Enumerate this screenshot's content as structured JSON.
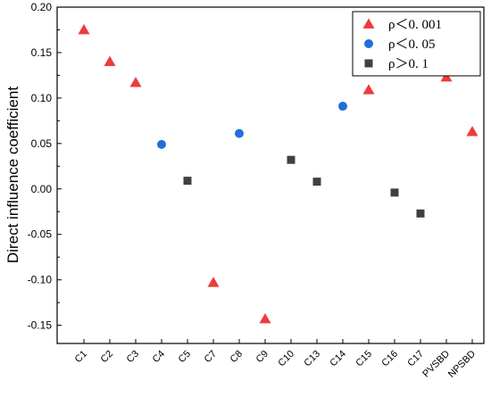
{
  "chart_data": {
    "type": "scatter",
    "title": "",
    "xlabel": "",
    "ylabel": "Direct influence coefficient",
    "ylim": [
      -0.17,
      0.2
    ],
    "yticks": [
      -0.15,
      -0.1,
      -0.05,
      0.0,
      0.05,
      0.1,
      0.15,
      0.2
    ],
    "ytick_labels": [
      "-0.15",
      "-0.10",
      "-0.05",
      "0.00",
      "0.05",
      "0.10",
      "0.15",
      "0.20"
    ],
    "categories": [
      "C1",
      "C2",
      "C3",
      "C4",
      "C5",
      "C7",
      "C8",
      "C9",
      "C10",
      "C13",
      "C14",
      "C15",
      "C16",
      "C17",
      "PVSBD",
      "NPSBD"
    ],
    "grid": false,
    "legend_position": "top-right",
    "series": [
      {
        "name": "ρ＜0. 001",
        "marker": "triangle",
        "color": "#ee3b3b",
        "points": [
          {
            "x": "C1",
            "y": 0.175
          },
          {
            "x": "C2",
            "y": 0.14
          },
          {
            "x": "C3",
            "y": 0.117
          },
          {
            "x": "C7",
            "y": -0.103
          },
          {
            "x": "C9",
            "y": -0.143
          },
          {
            "x": "C15",
            "y": 0.109
          },
          {
            "x": "PVSBD",
            "y": 0.123
          },
          {
            "x": "NPSBD",
            "y": 0.063
          }
        ]
      },
      {
        "name": "ρ＜0. 05",
        "marker": "circle",
        "color": "#1f6fdc",
        "points": [
          {
            "x": "C4",
            "y": 0.049
          },
          {
            "x": "C8",
            "y": 0.061
          },
          {
            "x": "C14",
            "y": 0.091
          }
        ]
      },
      {
        "name": "ρ＞0. 1",
        "marker": "square",
        "color": "#404040",
        "points": [
          {
            "x": "C5",
            "y": 0.009
          },
          {
            "x": "C10",
            "y": 0.032
          },
          {
            "x": "C13",
            "y": 0.008
          },
          {
            "x": "C16",
            "y": -0.004
          },
          {
            "x": "C17",
            "y": -0.027
          }
        ]
      }
    ]
  }
}
